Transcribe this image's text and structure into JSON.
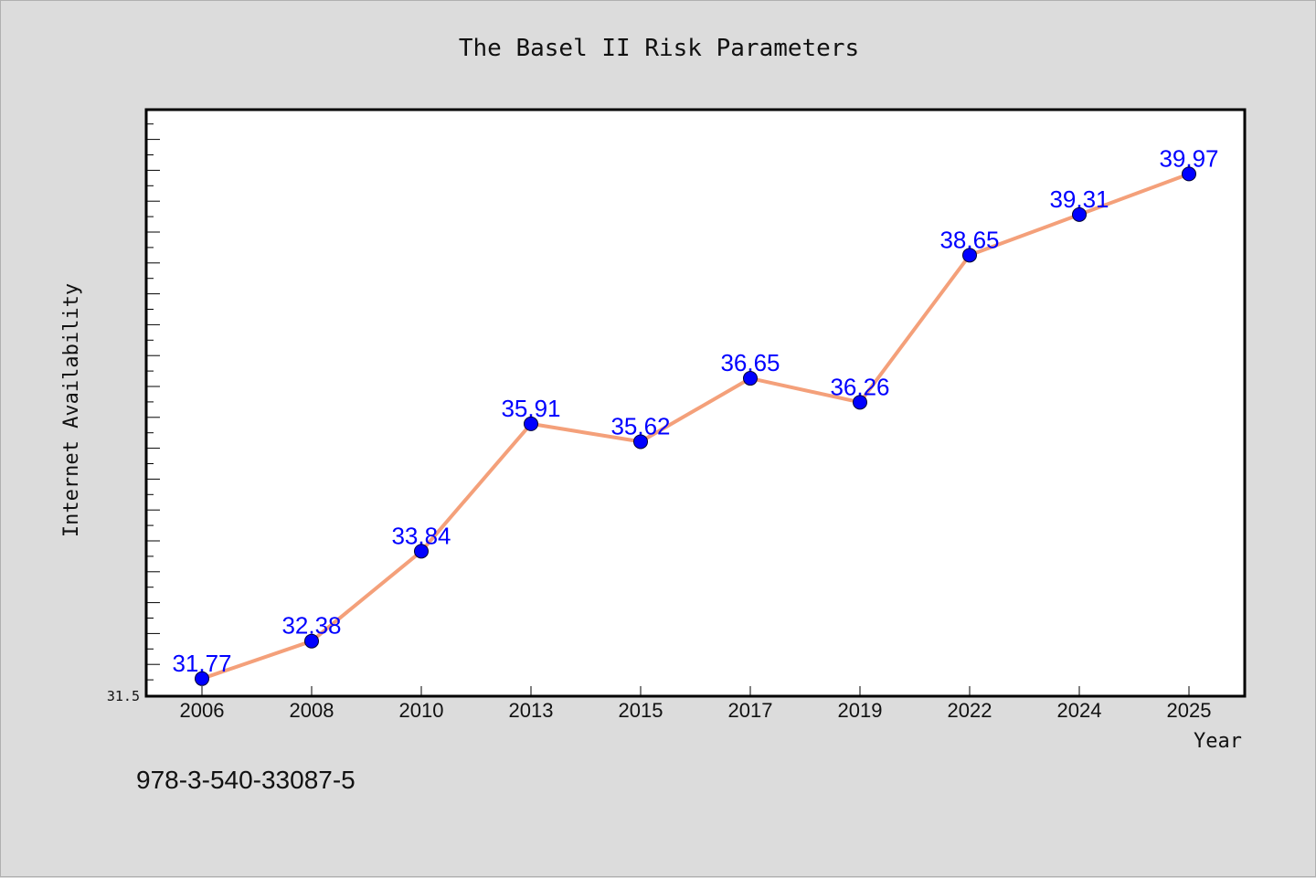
{
  "chart_data": {
    "type": "line",
    "title": "The Basel II Risk Parameters",
    "xlabel": "Year",
    "ylabel": "Internet Availability",
    "x": [
      "2006",
      "2008",
      "2010",
      "2013",
      "2015",
      "2017",
      "2019",
      "2022",
      "2024",
      "2025"
    ],
    "series": [
      {
        "values": [
          31.77,
          32.38,
          33.84,
          35.91,
          35.62,
          36.65,
          36.26,
          38.65,
          39.31,
          39.97
        ],
        "data_labels": [
          "31.77",
          "32.38",
          "33.84",
          "35.91",
          "35.62",
          "36.65",
          "36.26",
          "38.65",
          "39.31",
          "39.97"
        ],
        "line_color": "#f4a07a",
        "marker_color": "#0000ff"
      }
    ],
    "ylim": [
      31.5,
      41.0
    ],
    "y_tick_label": "31.5",
    "grid": false,
    "legend": "none"
  },
  "footnote": "978-3-540-33087-5"
}
